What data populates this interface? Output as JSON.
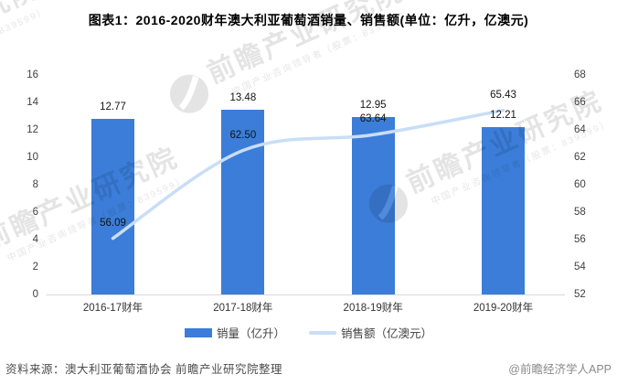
{
  "title": "图表1：2016-2020财年澳大利亚葡萄酒销量、销售额(单位：亿升，亿澳元)",
  "chart_data": {
    "type": "bar",
    "subtype": "bar-line-combo",
    "categories": [
      "2016-17财年",
      "2017-18财年",
      "2018-19财年",
      "2019-20财年"
    ],
    "series": [
      {
        "name": "销量（亿升）",
        "type": "bar",
        "axis": "left",
        "color": "#3b7dd8",
        "values": [
          12.77,
          13.48,
          12.95,
          12.21
        ],
        "labels": [
          "12.77",
          "13.48",
          "12.95",
          "12.21"
        ]
      },
      {
        "name": "销售额（亿澳元）",
        "type": "line",
        "axis": "right",
        "color": "#c8def6",
        "values": [
          56.09,
          62.5,
          63.64,
          65.43
        ],
        "labels": [
          "56.09",
          "62.50",
          "63.64",
          "65.43"
        ]
      }
    ],
    "left_axis": {
      "min": 0,
      "max": 16,
      "step": 2,
      "ticks": [
        0,
        2,
        4,
        6,
        8,
        10,
        12,
        14,
        16
      ]
    },
    "right_axis": {
      "min": 52,
      "max": 68,
      "step": 2,
      "ticks": [
        52,
        54,
        56,
        58,
        60,
        62,
        64,
        66,
        68
      ]
    },
    "grid": false,
    "legend_position": "bottom"
  },
  "legend": [
    {
      "label": "销量（亿升）"
    },
    {
      "label": "销售额（亿澳元）"
    }
  ],
  "footer": {
    "source": "资料来源：澳大利亚葡萄酒协会 前瞻产业研究院整理",
    "credit": "@前瞻经济学人APP"
  },
  "watermark": {
    "brand": "前瞻产业研究院",
    "tagline": "中国产业咨询领导者（股票：839599）"
  },
  "colors": {
    "bar": "#3b7dd8",
    "line": "#c8def6",
    "axis_line": "#d9d9d9"
  }
}
